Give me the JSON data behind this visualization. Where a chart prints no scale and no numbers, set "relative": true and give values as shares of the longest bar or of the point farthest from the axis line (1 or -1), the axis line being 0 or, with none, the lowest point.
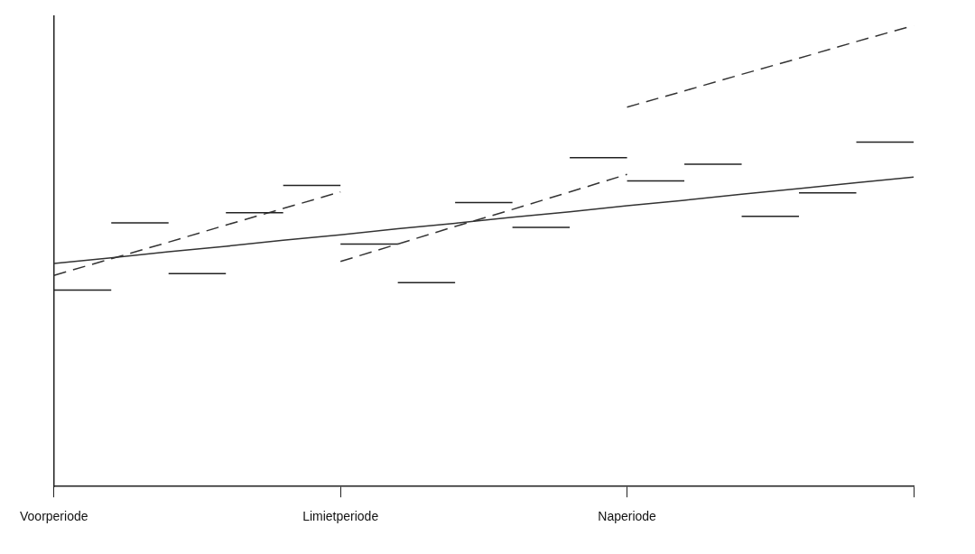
{
  "chart_data": {
    "type": "line",
    "relative": true,
    "grid": false,
    "legend": false,
    "marker": "none",
    "tick_labels": "x",
    "categories": [
      "Voorperiode",
      null,
      null,
      null,
      null,
      "Limietperiode",
      null,
      null,
      null,
      null,
      "Naperiode",
      null,
      null,
      null,
      null,
      null
    ],
    "series": [
      {
        "color": "#222222",
        "values": [
          0.426,
          0.426,
          null,
          null,
          null,
          null,
          null,
          null,
          null,
          null,
          null,
          null,
          null,
          null,
          null,
          null
        ]
      },
      {
        "color": "#222222",
        "values": [
          null,
          0.572,
          0.572,
          null,
          null,
          null,
          null,
          null,
          null,
          null,
          null,
          null,
          null,
          null,
          null,
          null
        ]
      },
      {
        "color": "#222222",
        "values": [
          null,
          null,
          0.462,
          0.462,
          null,
          null,
          null,
          null,
          null,
          null,
          null,
          null,
          null,
          null,
          null,
          null
        ]
      },
      {
        "color": "#222222",
        "values": [
          null,
          null,
          null,
          0.594,
          0.594,
          null,
          null,
          null,
          null,
          null,
          null,
          null,
          null,
          null,
          null,
          null
        ]
      },
      {
        "color": "#222222",
        "values": [
          null,
          null,
          null,
          null,
          0.653,
          0.653,
          null,
          null,
          null,
          null,
          null,
          null,
          null,
          null,
          null,
          null
        ]
      },
      {
        "color": "#222222",
        "values": [
          null,
          null,
          null,
          null,
          null,
          0.526,
          0.526,
          null,
          null,
          null,
          null,
          null,
          null,
          null,
          null,
          null
        ]
      },
      {
        "color": "#222222",
        "values": [
          null,
          null,
          null,
          null,
          null,
          null,
          0.442,
          0.442,
          null,
          null,
          null,
          null,
          null,
          null,
          null,
          null
        ]
      },
      {
        "color": "#222222",
        "values": [
          null,
          null,
          null,
          null,
          null,
          null,
          null,
          0.616,
          0.616,
          null,
          null,
          null,
          null,
          null,
          null,
          null
        ]
      },
      {
        "color": "#222222",
        "values": [
          null,
          null,
          null,
          null,
          null,
          null,
          null,
          null,
          0.562,
          0.562,
          null,
          null,
          null,
          null,
          null,
          null
        ]
      },
      {
        "color": "#222222",
        "values": [
          null,
          null,
          null,
          null,
          null,
          null,
          null,
          null,
          null,
          0.713,
          0.713,
          null,
          null,
          null,
          null,
          null
        ]
      },
      {
        "color": "#222222",
        "values": [
          null,
          null,
          null,
          null,
          null,
          null,
          null,
          null,
          null,
          null,
          0.663,
          0.663,
          null,
          null,
          null,
          null
        ]
      },
      {
        "color": "#222222",
        "values": [
          null,
          null,
          null,
          null,
          null,
          null,
          null,
          null,
          null,
          null,
          null,
          0.699,
          0.699,
          null,
          null,
          null
        ]
      },
      {
        "color": "#222222",
        "values": [
          null,
          null,
          null,
          null,
          null,
          null,
          null,
          null,
          null,
          null,
          null,
          null,
          0.586,
          0.586,
          null,
          null
        ]
      },
      {
        "color": "#222222",
        "values": [
          null,
          null,
          null,
          null,
          null,
          null,
          null,
          null,
          null,
          null,
          null,
          null,
          null,
          0.637,
          0.637,
          null
        ]
      },
      {
        "color": "#222222",
        "values": [
          null,
          null,
          null,
          null,
          null,
          null,
          null,
          null,
          null,
          null,
          null,
          null,
          null,
          null,
          0.747,
          0.747
        ]
      },
      {
        "color": "#333333",
        "values": [
          0.484,
          0.496,
          0.509,
          0.521,
          0.534,
          0.546,
          0.559,
          0.571,
          0.584,
          0.596,
          0.609,
          0.621,
          0.634,
          0.646,
          0.659,
          0.671
        ]
      },
      {
        "color": "#333333",
        "line_style": "dashed",
        "values": [
          0.458,
          0.494,
          0.53,
          0.567,
          0.603,
          0.639,
          null,
          null,
          null,
          null,
          null,
          null,
          null,
          null,
          null,
          null
        ]
      },
      {
        "color": "#333333",
        "line_style": "dashed",
        "values": [
          null,
          null,
          null,
          null,
          null,
          0.488,
          0.526,
          0.564,
          0.601,
          0.639,
          0.677,
          null,
          null,
          null,
          null,
          null
        ]
      },
      {
        "color": "#333333",
        "line_style": "dashed",
        "values": [
          null,
          null,
          null,
          null,
          null,
          null,
          null,
          null,
          null,
          null,
          0.823,
          0.858,
          0.894,
          0.929,
          0.965,
          1.0
        ]
      }
    ]
  }
}
